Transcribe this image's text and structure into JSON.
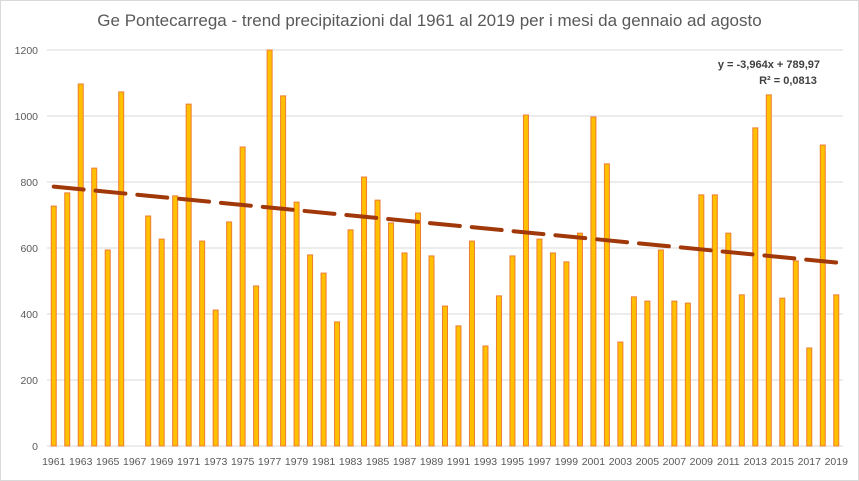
{
  "chart_data": {
    "type": "bar",
    "title": "Ge Pontecarrega - trend precipitazioni dal 1961 al 2019 per i mesi da gennaio ad agosto",
    "xlabel": "",
    "ylabel": "",
    "ylim": [
      0,
      1200
    ],
    "yticks": [
      0,
      200,
      400,
      600,
      800,
      1000,
      1200
    ],
    "grid": true,
    "legend": "none",
    "bar_color": "#FFC000",
    "bar_border_color": "#ED7D31",
    "trendline_color": "#A0380A",
    "categories": [
      "1961",
      "1962",
      "1963",
      "1964",
      "1965",
      "1966",
      "1967",
      "1968",
      "1969",
      "1970",
      "1971",
      "1972",
      "1973",
      "1974",
      "1975",
      "1976",
      "1977",
      "1978",
      "1979",
      "1980",
      "1981",
      "1982",
      "1983",
      "1984",
      "1985",
      "1986",
      "1987",
      "1988",
      "1989",
      "1990",
      "1991",
      "1992",
      "1993",
      "1994",
      "1995",
      "1996",
      "1997",
      "1998",
      "1999",
      "2000",
      "2001",
      "2002",
      "2003",
      "2004",
      "2005",
      "2006",
      "2007",
      "2008",
      "2009",
      "2010",
      "2011",
      "2012",
      "2013",
      "2014",
      "2015",
      "2016",
      "2017",
      "2018",
      "2019"
    ],
    "xtick_labels": [
      "1961",
      "1963",
      "1965",
      "1967",
      "1969",
      "1971",
      "1973",
      "1975",
      "1977",
      "1979",
      "1981",
      "1983",
      "1985",
      "1987",
      "1989",
      "1991",
      "1993",
      "1995",
      "1997",
      "1999",
      "2001",
      "2003",
      "2005",
      "2007",
      "2009",
      "2011",
      "2013",
      "2015",
      "2017",
      "2019"
    ],
    "values": [
      727,
      767,
      1097,
      842,
      594,
      1073,
      null,
      697,
      627,
      758,
      1036,
      621,
      412,
      679,
      906,
      485,
      1200,
      1061,
      739,
      579,
      524,
      376,
      655,
      815,
      745,
      676,
      585,
      706,
      576,
      424,
      364,
      621,
      303,
      455,
      576,
      1003,
      627,
      585,
      558,
      645,
      997,
      855,
      315,
      452,
      439,
      594,
      439,
      433,
      761,
      761,
      645,
      458,
      964,
      1064,
      448,
      561,
      297,
      912,
      458
    ],
    "trendline": {
      "type": "linear",
      "slope": -3.964,
      "intercept": 789.97,
      "equation_label": "y = -3,964x + 789,97",
      "r2_label": "R² = 0,0813"
    }
  }
}
